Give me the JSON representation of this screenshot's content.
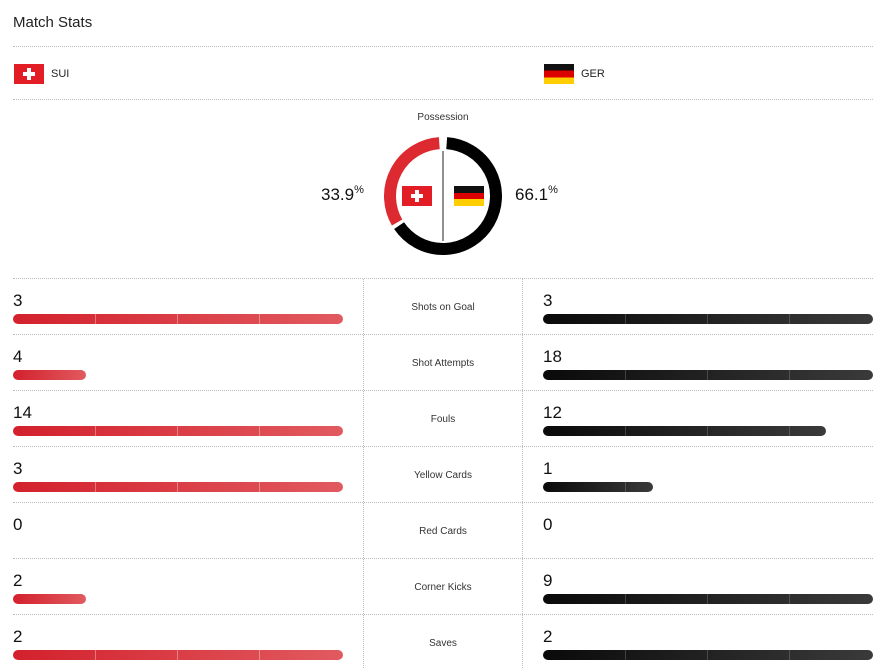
{
  "title": "Match Stats",
  "teams": {
    "home": {
      "abbr": "SUI",
      "flag": "swiss-flag-icon",
      "color": "#e31d25"
    },
    "away": {
      "abbr": "GER",
      "flag": "german-flag-icon",
      "color": "#111111"
    }
  },
  "possession": {
    "label": "Possession",
    "home_value": "33.9",
    "away_value": "66.1",
    "unit": "%",
    "home_fraction": 0.339,
    "away_fraction": 0.661
  },
  "stats": [
    {
      "label": "Shots on Goal",
      "home": "3",
      "away": "3",
      "home_bar": 1.0,
      "away_bar": 1.0
    },
    {
      "label": "Shot Attempts",
      "home": "4",
      "away": "18",
      "home_bar": 0.222,
      "away_bar": 1.0
    },
    {
      "label": "Fouls",
      "home": "14",
      "away": "12",
      "home_bar": 1.0,
      "away_bar": 0.857
    },
    {
      "label": "Yellow Cards",
      "home": "3",
      "away": "1",
      "home_bar": 1.0,
      "away_bar": 0.333
    },
    {
      "label": "Red Cards",
      "home": "0",
      "away": "0",
      "home_bar": 0.0,
      "away_bar": 0.0
    },
    {
      "label": "Corner Kicks",
      "home": "2",
      "away": "9",
      "home_bar": 0.222,
      "away_bar": 1.0
    },
    {
      "label": "Saves",
      "home": "2",
      "away": "2",
      "home_bar": 1.0,
      "away_bar": 1.0
    }
  ]
}
